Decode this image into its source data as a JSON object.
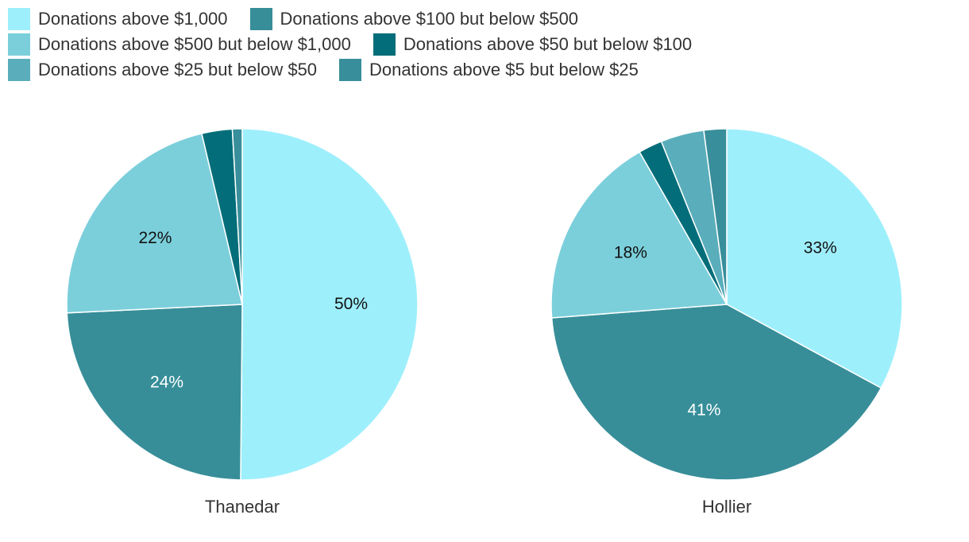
{
  "colors": [
    "#9eeffc",
    "#7bcfdb",
    "#5aaebb",
    "#378e99",
    "#036e79",
    "#388e9a"
  ],
  "legend": {
    "rows": [
      [
        {
          "label": "Donations above $1,000",
          "series": 0
        },
        {
          "label": "Donations above $100 but below $500",
          "series": 3
        }
      ],
      [
        {
          "label": "Donations above $500 but below $1,000",
          "series": 1
        },
        {
          "label": "Donations above $50 but below $100",
          "series": 4
        }
      ],
      [
        {
          "label": "Donations above $25 but below $50",
          "series": 2
        },
        {
          "label": "Donations above $5 but below $25",
          "series": 5
        }
      ]
    ]
  },
  "chart_data": [
    {
      "type": "pie",
      "title": "Thanedar",
      "categories": [
        "Donations above $1,000",
        "Donations above $100 but below $500",
        "Donations above $500 but below $1,000",
        "Donations above $50 but below $100",
        "Donations above $25 but below $50",
        "Donations above $5 but below $25"
      ],
      "series_index": [
        0,
        3,
        1,
        4,
        2,
        5
      ],
      "values": [
        50,
        24,
        22,
        2.8,
        0,
        0.9
      ],
      "labels": [
        "50%",
        "24%",
        "22%",
        "",
        "",
        ""
      ],
      "label_colors": [
        "#111111",
        "#ffffff",
        "#111111",
        "#ffffff",
        "#ffffff",
        "#ffffff"
      ]
    },
    {
      "type": "pie",
      "title": "Hollier",
      "categories": [
        "Donations above $1,000",
        "Donations above $100 but below $500",
        "Donations above $500 but below $1,000",
        "Donations above $50 but below $100",
        "Donations above $25 but below $50",
        "Donations above $5 but below $25"
      ],
      "series_index": [
        0,
        3,
        1,
        4,
        2,
        5
      ],
      "values": [
        33,
        41,
        18,
        2.2,
        4,
        2.1
      ],
      "labels": [
        "33%",
        "41%",
        "18%",
        "",
        "",
        ""
      ],
      "label_colors": [
        "#111111",
        "#ffffff",
        "#111111",
        "#ffffff",
        "#ffffff",
        "#ffffff"
      ]
    }
  ]
}
